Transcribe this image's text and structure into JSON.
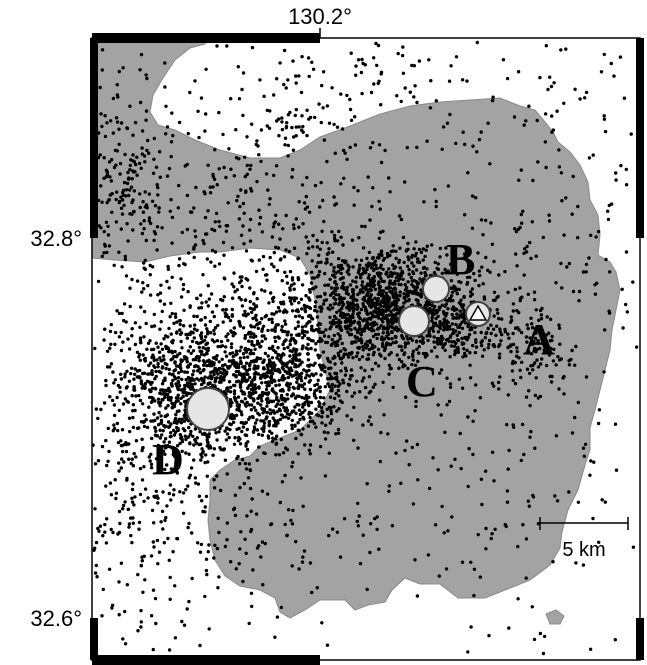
{
  "map": {
    "axes": {
      "top_tick_label": "130.2°",
      "left_tick_labels": [
        "32.8°",
        "32.6°"
      ]
    },
    "scale_bar": {
      "label": "5 km"
    },
    "markers": [
      {
        "id": "A",
        "label": "A",
        "symbol": "triangle-in-circle"
      },
      {
        "id": "B",
        "label": "B",
        "symbol": "circle"
      },
      {
        "id": "C",
        "label": "C",
        "symbol": "circle"
      },
      {
        "id": "D",
        "label": "D",
        "symbol": "circle"
      }
    ],
    "colors": {
      "land": "#a3a3a3",
      "water": "#ffffff",
      "points": "#000000",
      "marker_fill": "#e6e6e6",
      "frame": "#000000"
    }
  }
}
